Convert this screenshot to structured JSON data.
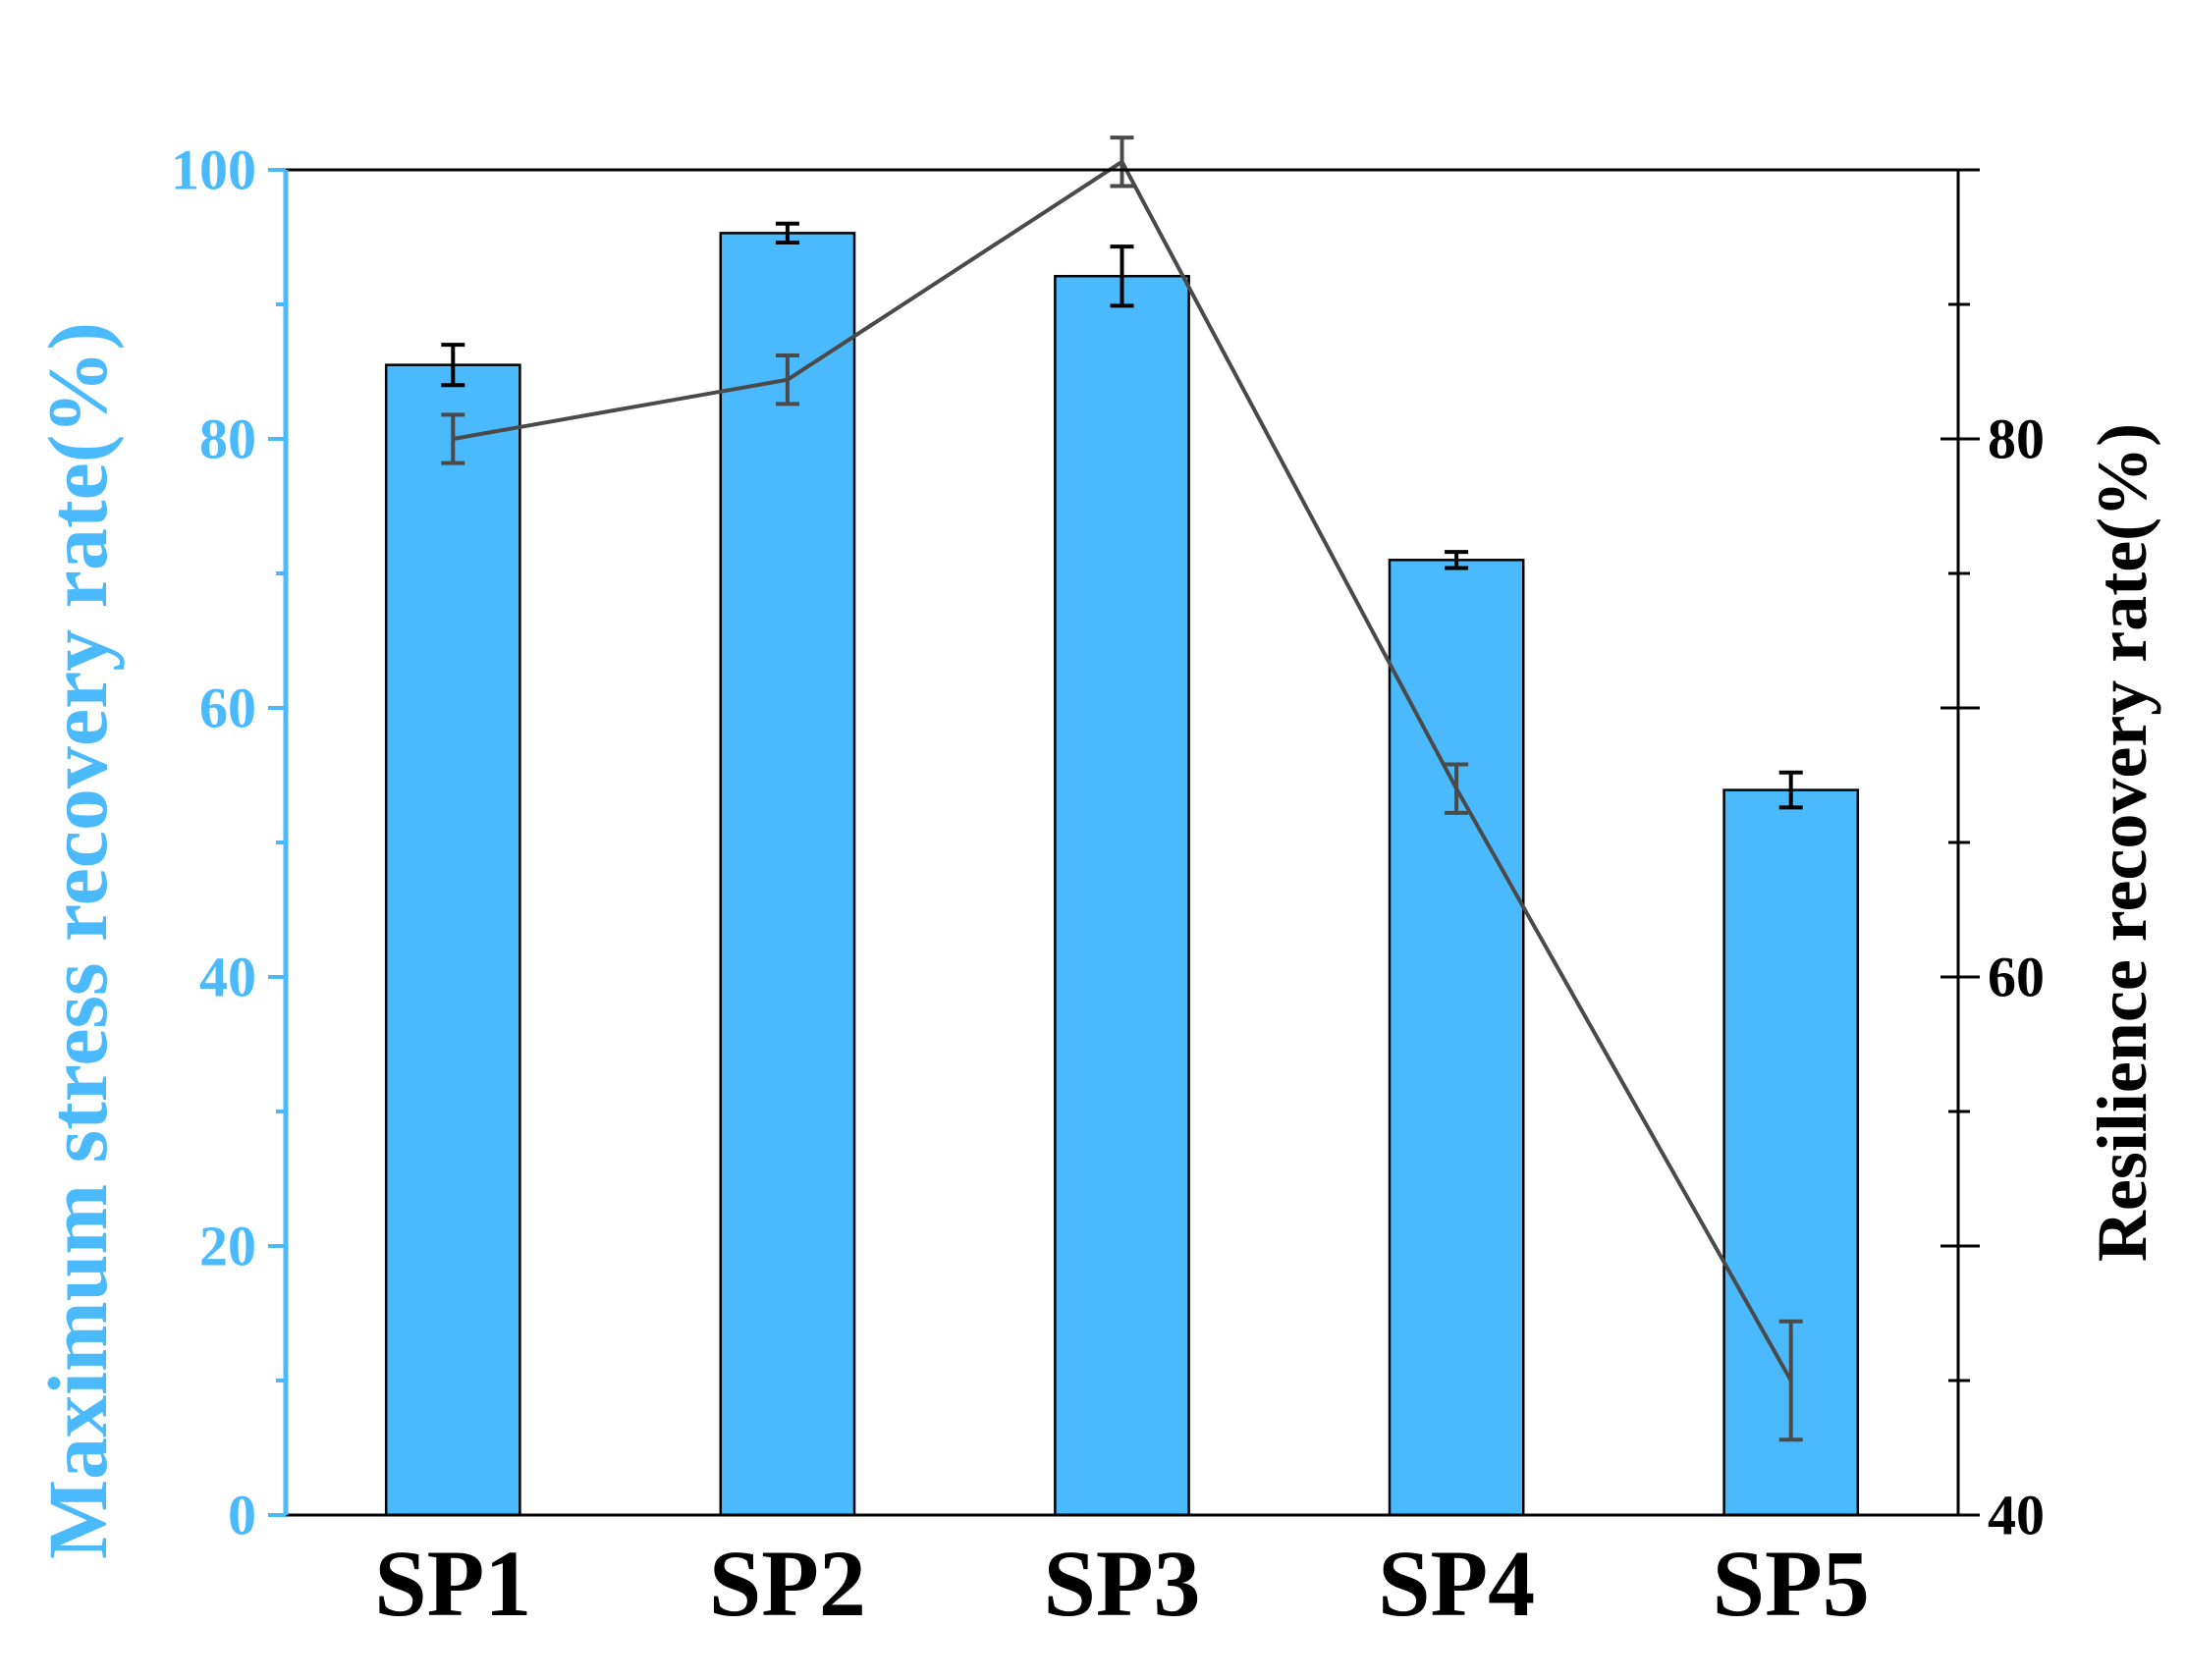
{
  "colors": {
    "bar_fill": "#4BBAFC",
    "left_axis": "#4BBAFC",
    "line": "#4A4A4A",
    "frame": "#000000"
  },
  "chart_data": {
    "type": "bar",
    "categories": [
      "SP1",
      "SP2",
      "SP3",
      "SP4",
      "SP5"
    ],
    "series": [
      {
        "type": "bar",
        "axis": "left",
        "values": [
          85.5,
          95.3,
          92.1,
          71.0,
          53.9
        ],
        "errors": [
          1.5,
          0.7,
          2.2,
          0.6,
          1.3
        ]
      },
      {
        "type": "line",
        "axis": "right",
        "values": [
          80.0,
          82.2,
          90.3,
          67.0,
          45.0
        ],
        "errors": [
          0.9,
          0.9,
          0.9,
          0.9,
          2.2
        ]
      }
    ],
    "ylabel_left": "Maximum stress recovery rate(%)",
    "ylabel_right": "Resilience recovery rate(%)",
    "ylim_left": [
      0,
      100
    ],
    "ylim_right": [
      40,
      90
    ],
    "yticks_left": [
      "0",
      "20",
      "40",
      "60",
      "80",
      "100"
    ],
    "yticks_right": [
      "40",
      "60",
      "80"
    ],
    "grid": false,
    "legend": "none"
  }
}
